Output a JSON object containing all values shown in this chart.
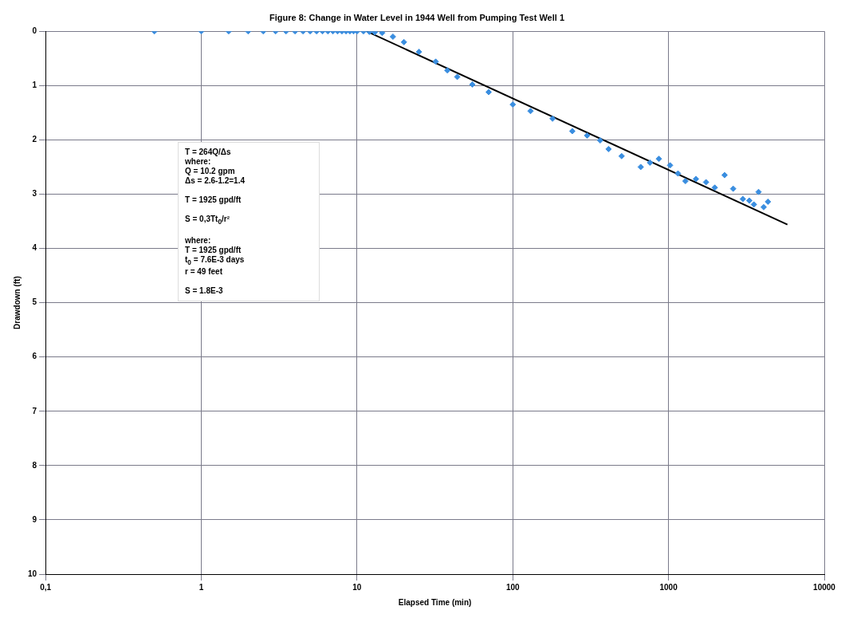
{
  "chart_data": {
    "type": "scatter",
    "title": "Figure 8: Change in Water Level in 1944 Well from Pumping Test Well 1",
    "xlabel": "Elapsed Time (min)",
    "ylabel": "Drawdown (ft)",
    "log": "x",
    "grid": true,
    "legend": false,
    "marker": "diamond",
    "xlim": [
      0.1,
      10000
    ],
    "xticks": [
      {
        "value": 0.1,
        "label": "0,1"
      },
      1,
      10,
      100,
      1000,
      10000
    ],
    "ylim": [
      10,
      0
    ],
    "yticks": [
      0,
      1,
      2,
      3,
      4,
      5,
      6,
      7,
      8,
      9,
      10
    ],
    "series": [
      {
        "color": "#3a8ee0",
        "x": [
          0.5,
          1,
          1.5,
          2,
          2.5,
          3,
          3.5,
          4,
          4.5,
          5,
          5.5,
          6,
          6.5,
          7,
          7.5,
          8,
          8.5,
          9,
          9.5,
          10,
          11,
          12,
          13,
          14.5,
          17,
          20,
          25,
          32,
          38,
          44,
          55,
          70,
          100,
          130,
          180,
          241,
          300,
          364,
          412,
          500,
          663,
          760,
          867,
          1023,
          1150,
          1284,
          1500,
          1741,
          1981,
          2291,
          2600,
          2999,
          3300,
          3532,
          3784,
          4083,
          4347
        ],
        "values": [
          0,
          0,
          0,
          0,
          0,
          0,
          0,
          0,
          0,
          0,
          0,
          0,
          0,
          0,
          0,
          0,
          0,
          0,
          0,
          0,
          0,
          0.01,
          0.02,
          0.03,
          0.1,
          0.2,
          0.38,
          0.56,
          0.72,
          0.84,
          0.98,
          1.12,
          1.35,
          1.47,
          1.61,
          1.84,
          1.92,
          2.01,
          2.17,
          2.3,
          2.5,
          2.42,
          2.35,
          2.47,
          2.62,
          2.76,
          2.72,
          2.78,
          2.88,
          2.65,
          2.9,
          3.09,
          3.12,
          3.19,
          2.96,
          3.24,
          3.14
        ]
      },
      {
        "type": "line",
        "color": "#000000",
        "marker": "none",
        "x": [
          11.5,
          5800
        ],
        "values": [
          0,
          3.56
        ]
      }
    ],
    "annotations": [
      "T = 264Q/Δs\nwhere:\nQ = 10.2 gpm\nΔs = 2.6-1.2=1.4",
      "T = 1925 gpd/ft",
      "S = 0,3Tt$_{0}$/r²",
      "where:\nT = 1925 gpd/ft\nt$_{0}$ = 7.6E-3 days\nr = 49 feet",
      "S = 1.8E-3"
    ]
  }
}
